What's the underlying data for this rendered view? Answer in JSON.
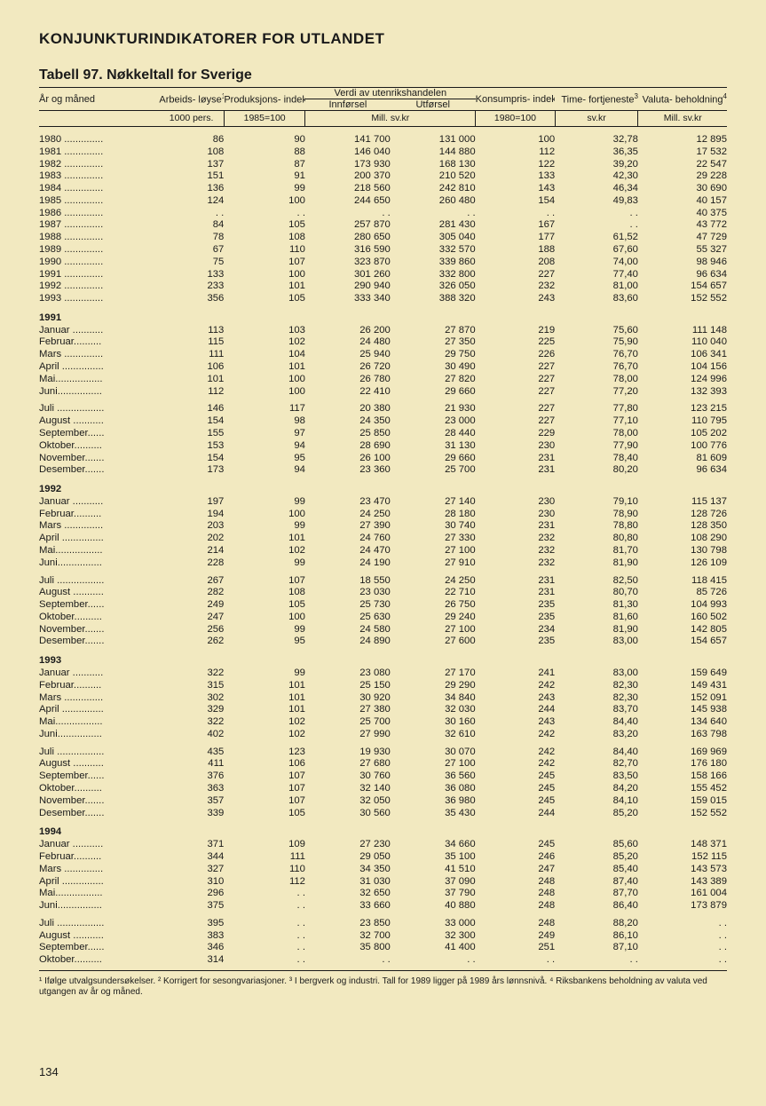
{
  "page_number": "134",
  "title": "KONJUNKTURINDIKATORER FOR UTLANDET",
  "table_caption": "Tabell 97.   Nøkkeltall for Sverige",
  "header": {
    "row_label": "År og måned",
    "cols": {
      "c1": "Arbeids-\nløyse",
      "c1_sup": "1",
      "c2": "Produksjons-\nindeks,\nindustri",
      "c2_sup": "2",
      "span34": "Verdi av utenrikshandelen",
      "c3": "Innførsel",
      "c4": "Utførsel",
      "c5": "Konsumpris-\nindeks",
      "c6": "Time-\nfortjeneste",
      "c6_sup": "3",
      "c7": "Valuta-\nbeholdning",
      "c7_sup": "4"
    },
    "units": {
      "c1": "1000 pers.",
      "c2": "1985=100",
      "c34": "Mill. sv.kr",
      "c5": "1980=100",
      "c6": "sv.kr",
      "c7": "Mill. sv.kr"
    }
  },
  "footnotes": "¹ Ifølge utvalgsundersøkelser. ² Korrigert for sesongvariasjoner. ³ I bergverk og industri. Tall for 1989 ligger på 1989 års lønnsnivå. ⁴ Riksbankens beholdning av valuta ved utgangen av år og måned.",
  "year_labels": {
    "y1991": "1991",
    "y1992": "1992",
    "y1993": "1993",
    "y1994": "1994"
  },
  "rows": [
    {
      "l": "1980 ..............",
      "v": [
        "86",
        "90",
        "141 700",
        "131 000",
        "100",
        "32,78",
        "12 895"
      ]
    },
    {
      "l": "1981 ..............",
      "v": [
        "108",
        "88",
        "146 040",
        "144 880",
        "112",
        "36,35",
        "17 532"
      ]
    },
    {
      "l": "1982 ..............",
      "v": [
        "137",
        "87",
        "173 930",
        "168 130",
        "122",
        "39,20",
        "22 547"
      ]
    },
    {
      "l": "1983 ..............",
      "v": [
        "151",
        "91",
        "200 370",
        "210 520",
        "133",
        "42,30",
        "29 228"
      ]
    },
    {
      "l": "1984 ..............",
      "v": [
        "136",
        "99",
        "218 560",
        "242 810",
        "143",
        "46,34",
        "30 690"
      ]
    },
    {
      "l": "1985 ..............",
      "v": [
        "124",
        "100",
        "244 650",
        "260 480",
        "154",
        "49,83",
        "40 157"
      ]
    },
    {
      "l": "1986 ..............",
      "v": [
        ". .",
        ". .",
        ". .",
        ". .",
        ". .",
        ". .",
        "40 375"
      ]
    },
    {
      "l": "1987 ..............",
      "v": [
        "84",
        "105",
        "257 870",
        "281 430",
        "167",
        ". .",
        "43 772"
      ]
    },
    {
      "l": "1988 ..............",
      "v": [
        "78",
        "108",
        "280 650",
        "305 040",
        "177",
        "61,52",
        "47 729"
      ]
    },
    {
      "l": "1989 ..............",
      "v": [
        "67",
        "110",
        "316 590",
        "332 570",
        "188",
        "67,60",
        "55 327"
      ]
    },
    {
      "l": "1990 ..............",
      "v": [
        "75",
        "107",
        "323 870",
        "339 860",
        "208",
        "74,00",
        "98 946"
      ]
    },
    {
      "l": "1991 ..............",
      "v": [
        "133",
        "100",
        "301 260",
        "332 800",
        "227",
        "77,40",
        "96 634"
      ]
    },
    {
      "l": "1992 ..............",
      "v": [
        "233",
        "101",
        "290 940",
        "326 050",
        "232",
        "81,00",
        "154 657"
      ]
    },
    {
      "l": "1993 ..............",
      "v": [
        "356",
        "105",
        "333 340",
        "388 320",
        "243",
        "83,60",
        "152 552"
      ]
    }
  ],
  "m1991a": [
    {
      "l": "Januar ...........",
      "v": [
        "113",
        "103",
        "26 200",
        "27 870",
        "219",
        "75,60",
        "111 148"
      ]
    },
    {
      "l": "Februar..........",
      "v": [
        "115",
        "102",
        "24 480",
        "27 350",
        "225",
        "75,90",
        "110 040"
      ]
    },
    {
      "l": "Mars ..............",
      "v": [
        "111",
        "104",
        "25 940",
        "29 750",
        "226",
        "76,70",
        "106 341"
      ]
    },
    {
      "l": "April ...............",
      "v": [
        "106",
        "101",
        "26 720",
        "30 490",
        "227",
        "76,70",
        "104 156"
      ]
    },
    {
      "l": "Mai.................",
      "v": [
        "101",
        "100",
        "26 780",
        "27 820",
        "227",
        "78,00",
        "124 996"
      ]
    },
    {
      "l": "Juni................",
      "v": [
        "112",
        "100",
        "22 410",
        "29 660",
        "227",
        "77,20",
        "132 393"
      ]
    }
  ],
  "m1991b": [
    {
      "l": "Juli .................",
      "v": [
        "146",
        "117",
        "20 380",
        "21 930",
        "227",
        "77,80",
        "123 215"
      ]
    },
    {
      "l": "August ...........",
      "v": [
        "154",
        "98",
        "24 350",
        "23 000",
        "227",
        "77,10",
        "110 795"
      ]
    },
    {
      "l": "September......",
      "v": [
        "155",
        "97",
        "25 850",
        "28 440",
        "229",
        "78,00",
        "105 202"
      ]
    },
    {
      "l": "Oktober..........",
      "v": [
        "153",
        "94",
        "28 690",
        "31 130",
        "230",
        "77,90",
        "100 776"
      ]
    },
    {
      "l": "November.......",
      "v": [
        "154",
        "95",
        "26 100",
        "29 660",
        "231",
        "78,40",
        "81 609"
      ]
    },
    {
      "l": "Desember.......",
      "v": [
        "173",
        "94",
        "23 360",
        "25 700",
        "231",
        "80,20",
        "96 634"
      ]
    }
  ],
  "m1992a": [
    {
      "l": "Januar ...........",
      "v": [
        "197",
        "99",
        "23 470",
        "27 140",
        "230",
        "79,10",
        "115 137"
      ]
    },
    {
      "l": "Februar..........",
      "v": [
        "194",
        "100",
        "24 250",
        "28 180",
        "230",
        "78,90",
        "128 726"
      ]
    },
    {
      "l": "Mars ..............",
      "v": [
        "203",
        "99",
        "27 390",
        "30 740",
        "231",
        "78,80",
        "128 350"
      ]
    },
    {
      "l": "April ...............",
      "v": [
        "202",
        "101",
        "24 760",
        "27 330",
        "232",
        "80,80",
        "108 290"
      ]
    },
    {
      "l": "Mai.................",
      "v": [
        "214",
        "102",
        "24 470",
        "27 100",
        "232",
        "81,70",
        "130 798"
      ]
    },
    {
      "l": "Juni................",
      "v": [
        "228",
        "99",
        "24 190",
        "27 910",
        "232",
        "81,90",
        "126 109"
      ]
    }
  ],
  "m1992b": [
    {
      "l": "Juli .................",
      "v": [
        "267",
        "107",
        "18 550",
        "24 250",
        "231",
        "82,50",
        "118 415"
      ]
    },
    {
      "l": "August ...........",
      "v": [
        "282",
        "108",
        "23 030",
        "22 710",
        "231",
        "80,70",
        "85 726"
      ]
    },
    {
      "l": "September......",
      "v": [
        "249",
        "105",
        "25 730",
        "26 750",
        "235",
        "81,30",
        "104 993"
      ]
    },
    {
      "l": "Oktober..........",
      "v": [
        "247",
        "100",
        "25 630",
        "29 240",
        "235",
        "81,60",
        "160 502"
      ]
    },
    {
      "l": "November.......",
      "v": [
        "256",
        "99",
        "24 580",
        "27 100",
        "234",
        "81,90",
        "142 805"
      ]
    },
    {
      "l": "Desember.......",
      "v": [
        "262",
        "95",
        "24 890",
        "27 600",
        "235",
        "83,00",
        "154 657"
      ]
    }
  ],
  "m1993a": [
    {
      "l": "Januar ...........",
      "v": [
        "322",
        "99",
        "23 080",
        "27 170",
        "241",
        "83,00",
        "159 649"
      ]
    },
    {
      "l": "Februar..........",
      "v": [
        "315",
        "101",
        "25 150",
        "29 290",
        "242",
        "82,30",
        "149 431"
      ]
    },
    {
      "l": "Mars ..............",
      "v": [
        "302",
        "101",
        "30 920",
        "34 840",
        "243",
        "82,30",
        "152 091"
      ]
    },
    {
      "l": "April ...............",
      "v": [
        "329",
        "101",
        "27 380",
        "32 030",
        "244",
        "83,70",
        "145 938"
      ]
    },
    {
      "l": "Mai.................",
      "v": [
        "322",
        "102",
        "25 700",
        "30 160",
        "243",
        "84,40",
        "134 640"
      ]
    },
    {
      "l": "Juni................",
      "v": [
        "402",
        "102",
        "27 990",
        "32 610",
        "242",
        "83,20",
        "163 798"
      ]
    }
  ],
  "m1993b": [
    {
      "l": "Juli .................",
      "v": [
        "435",
        "123",
        "19 930",
        "30 070",
        "242",
        "84,40",
        "169 969"
      ]
    },
    {
      "l": "August ...........",
      "v": [
        "411",
        "106",
        "27 680",
        "27 100",
        "242",
        "82,70",
        "176 180"
      ]
    },
    {
      "l": "September......",
      "v": [
        "376",
        "107",
        "30 760",
        "36 560",
        "245",
        "83,50",
        "158 166"
      ]
    },
    {
      "l": "Oktober..........",
      "v": [
        "363",
        "107",
        "32 140",
        "36 080",
        "245",
        "84,20",
        "155 452"
      ]
    },
    {
      "l": "November.......",
      "v": [
        "357",
        "107",
        "32 050",
        "36 980",
        "245",
        "84,10",
        "159 015"
      ]
    },
    {
      "l": "Desember.......",
      "v": [
        "339",
        "105",
        "30 560",
        "35 430",
        "244",
        "85,20",
        "152 552"
      ]
    }
  ],
  "m1994a": [
    {
      "l": "Januar ...........",
      "v": [
        "371",
        "109",
        "27 230",
        "34 660",
        "245",
        "85,60",
        "148 371"
      ]
    },
    {
      "l": "Februar..........",
      "v": [
        "344",
        "111",
        "29 050",
        "35 100",
        "246",
        "85,20",
        "152 115"
      ]
    },
    {
      "l": "Mars ..............",
      "v": [
        "327",
        "110",
        "34 350",
        "41 510",
        "247",
        "85,40",
        "143 573"
      ]
    },
    {
      "l": "April ...............",
      "v": [
        "310",
        "112",
        "31 030",
        "37 090",
        "248",
        "87,40",
        "143 389"
      ]
    },
    {
      "l": "Mai.................",
      "v": [
        "296",
        ". .",
        "32 650",
        "37 790",
        "248",
        "87,70",
        "161 004"
      ]
    },
    {
      "l": "Juni................",
      "v": [
        "375",
        ". .",
        "33 660",
        "40 880",
        "248",
        "86,40",
        "173 879"
      ]
    }
  ],
  "m1994b": [
    {
      "l": "Juli .................",
      "v": [
        "395",
        ". .",
        "23 850",
        "33 000",
        "248",
        "88,20",
        ". ."
      ]
    },
    {
      "l": "August ...........",
      "v": [
        "383",
        ". .",
        "32 700",
        "32 300",
        "249",
        "86,10",
        ". ."
      ]
    },
    {
      "l": "September......",
      "v": [
        "346",
        ". .",
        "35 800",
        "41 400",
        "251",
        "87,10",
        ". ."
      ]
    },
    {
      "l": "Oktober..........",
      "v": [
        "314",
        ". .",
        ". .",
        ". .",
        ". .",
        ". .",
        ". ."
      ]
    }
  ]
}
